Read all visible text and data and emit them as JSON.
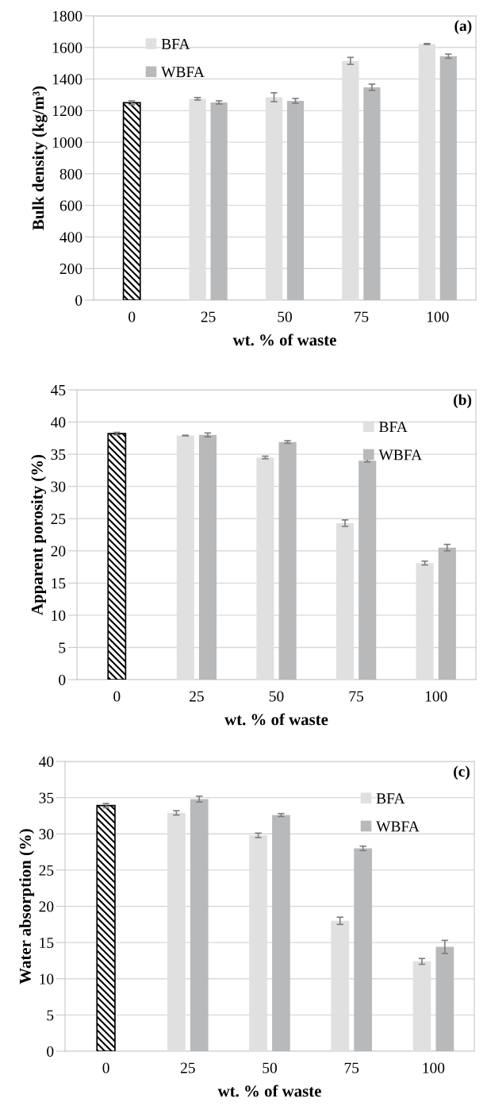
{
  "chart_data": [
    {
      "type": "bar",
      "ylabel": "Bulk density (kg/m³)",
      "xlabel": "wt. % of waste",
      "annotations": [
        "(a)"
      ],
      "categories": [
        "0",
        "25",
        "50",
        "75",
        "100"
      ],
      "ylim": [
        0,
        1800
      ],
      "yticks": [
        0,
        200,
        400,
        600,
        800,
        1000,
        1200,
        1400,
        1600,
        1800
      ],
      "grid": "y",
      "legend": "top left",
      "series": [
        {
          "color": "#000000",
          "values": [
            1250,
            null,
            null,
            null,
            null
          ],
          "errors": [
            12,
            null,
            null,
            null,
            null
          ]
        },
        {
          "name": "BFA",
          "color": "#e0e0e0",
          "values": [
            null,
            1275,
            1285,
            1515,
            1622
          ],
          "errors": [
            null,
            8,
            28,
            22,
            3
          ]
        },
        {
          "name": "WBFA",
          "color": "#b8b9bb",
          "values": [
            null,
            1252,
            1262,
            1348,
            1545
          ],
          "errors": [
            null,
            10,
            15,
            20,
            13
          ]
        }
      ]
    },
    {
      "type": "bar",
      "ylabel": "Apparent porosity (%)",
      "xlabel": "wt. % of waste",
      "annotations": [
        "(b)"
      ],
      "categories": [
        "0",
        "25",
        "50",
        "75",
        "100"
      ],
      "ylim": [
        0,
        45
      ],
      "yticks": [
        0,
        5,
        10,
        15,
        20,
        25,
        30,
        35,
        40,
        45
      ],
      "grid": "y",
      "legend": "top right",
      "series": [
        {
          "color": "#000000",
          "values": [
            38.2,
            null,
            null,
            null,
            null
          ],
          "errors": [
            0.2,
            null,
            null,
            null,
            null
          ]
        },
        {
          "name": "BFA",
          "color": "#e0e0e0",
          "values": [
            null,
            37.9,
            34.5,
            24.3,
            18.1
          ],
          "errors": [
            null,
            0.05,
            0.2,
            0.5,
            0.3
          ]
        },
        {
          "name": "WBFA",
          "color": "#b8b9bb",
          "values": [
            null,
            38.0,
            36.9,
            34.0,
            20.5
          ],
          "errors": [
            null,
            0.3,
            0.2,
            0.2,
            0.5
          ]
        }
      ]
    },
    {
      "type": "bar",
      "ylabel": "Water absorption (%)",
      "xlabel": "wt. % of waste",
      "annotations": [
        "(c)"
      ],
      "categories": [
        "0",
        "25",
        "50",
        "75",
        "100"
      ],
      "ylim": [
        0,
        40
      ],
      "yticks": [
        0,
        5,
        10,
        15,
        20,
        25,
        30,
        35,
        40
      ],
      "grid": "y",
      "legend": "top right",
      "series": [
        {
          "color": "#000000",
          "values": [
            33.9,
            null,
            null,
            null,
            null
          ],
          "errors": [
            0.3,
            null,
            null,
            null,
            null
          ]
        },
        {
          "name": "BFA",
          "color": "#e0e0e0",
          "values": [
            null,
            32.9,
            29.8,
            18.0,
            12.4
          ],
          "errors": [
            null,
            0.3,
            0.3,
            0.5,
            0.4
          ]
        },
        {
          "name": "WBFA",
          "color": "#b8b9bb",
          "values": [
            null,
            34.8,
            32.6,
            28.0,
            14.4
          ],
          "errors": [
            null,
            0.4,
            0.2,
            0.3,
            0.9
          ]
        }
      ]
    }
  ]
}
